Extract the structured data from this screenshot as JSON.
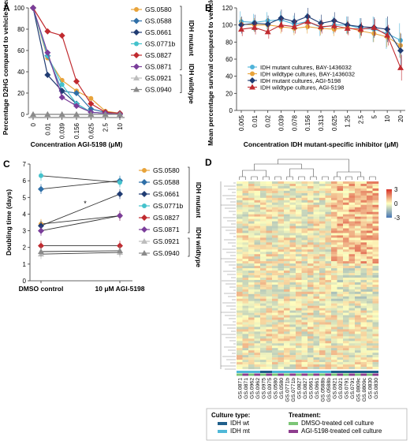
{
  "panels": {
    "a": "A",
    "b": "B",
    "c": "C",
    "d": "D"
  },
  "colors": {
    "GS.0580": "#e8a33a",
    "GS.0588": "#2f6fa8",
    "GS.0661": "#203c73",
    "GS.0771b": "#44c2cc",
    "GS.0827": "#c02a2f",
    "GS.0871": "#7a3d9a",
    "GS.0921": "#bdbdbd",
    "GS.0940": "#8a8a8a"
  },
  "chart_data": [
    {
      "id": "A",
      "type": "line",
      "ylabel": "Percentage D2HG compared to vehicle-treated",
      "xlabel": "Concentration AGI-5198 (μM)",
      "categories": [
        "0",
        "0.01",
        "0.039",
        "0.156",
        "0.625",
        "2.5",
        "10"
      ],
      "ylim": [
        0,
        100
      ],
      "yticks": [
        0,
        20,
        40,
        60,
        80,
        100
      ],
      "groups": [
        {
          "label": "IDH mutant",
          "members": 6
        },
        {
          "label": "IDH wildtype",
          "members": 2
        }
      ],
      "series": [
        {
          "name": "GS.0580",
          "values": [
            100,
            53,
            32,
            22,
            15,
            3,
            1
          ]
        },
        {
          "name": "GS.0588",
          "values": [
            100,
            55,
            22,
            20,
            5,
            2,
            1
          ]
        },
        {
          "name": "GS.0661",
          "values": [
            100,
            37,
            22,
            10,
            2,
            1,
            0
          ]
        },
        {
          "name": "GS.0771b",
          "values": [
            100,
            55,
            28,
            10,
            2,
            1,
            0
          ]
        },
        {
          "name": "GS.0827",
          "values": [
            100,
            78,
            74,
            31,
            10,
            2,
            1
          ]
        },
        {
          "name": "GS.0871",
          "values": [
            100,
            58,
            16,
            8,
            2,
            1,
            0
          ]
        },
        {
          "name": "GS.0921",
          "values": [
            0,
            0,
            0,
            0,
            0,
            0,
            0
          ]
        },
        {
          "name": "GS.0940",
          "values": [
            0,
            0,
            0,
            0,
            0,
            0,
            0
          ]
        }
      ]
    },
    {
      "id": "B",
      "type": "line",
      "ylabel": "Mean percentage survival compared to vehicle-treated",
      "xlabel": "Concentration IDH mutant-specific inhibitor (μM)",
      "categories": [
        "0.005",
        "0.01",
        "0.02",
        "0.039",
        "0.078",
        "0.156",
        "0.313",
        "0.625",
        "1.25",
        "2.5",
        "5",
        "10",
        "20"
      ],
      "ylim": [
        0,
        120
      ],
      "yticks": [
        0,
        20,
        40,
        60,
        80,
        100,
        120
      ],
      "series": [
        {
          "name": "IDH mutant cultures, BAY-1436032",
          "color": "#4fb3d9",
          "marker": "circle",
          "values": [
            104,
            103,
            105,
            106,
            101,
            104,
            97,
            100,
            100,
            96,
            95,
            90,
            82
          ],
          "errors": [
            12,
            10,
            10,
            10,
            10,
            10,
            10,
            10,
            10,
            12,
            15,
            18,
            20
          ]
        },
        {
          "name": "IDH wildtype cultures, BAY-1436032",
          "color": "#e8a33a",
          "marker": "circle",
          "values": [
            101,
            100,
            100,
            98,
            96,
            98,
            96,
            95,
            97,
            93,
            90,
            86,
            76
          ],
          "errors": [
            8,
            8,
            8,
            8,
            8,
            8,
            8,
            8,
            8,
            8,
            10,
            12,
            15
          ]
        },
        {
          "name": "IDH mutant cultures, AGI-5198",
          "color": "#203c73",
          "marker": "diamond",
          "values": [
            100,
            102,
            101,
            108,
            104,
            110,
            102,
            105,
            100,
            98,
            97,
            95,
            70
          ],
          "errors": [
            10,
            10,
            10,
            10,
            10,
            10,
            10,
            10,
            10,
            10,
            12,
            15,
            20
          ]
        },
        {
          "name": "IDH wildtype cultures, AGI-5198",
          "color": "#c02a2f",
          "marker": "triangle",
          "values": [
            95,
            97,
            92,
            100,
            98,
            104,
            98,
            99,
            96,
            95,
            97,
            88,
            50
          ],
          "errors": [
            8,
            8,
            8,
            8,
            8,
            8,
            8,
            8,
            8,
            8,
            10,
            12,
            15
          ]
        }
      ]
    },
    {
      "id": "C",
      "type": "line",
      "ylabel": "Doubling time (days)",
      "categories": [
        "DMSO control",
        "10 μM AGI-5198"
      ],
      "ylim": [
        0,
        7
      ],
      "yticks": [
        0,
        1,
        2,
        3,
        4,
        5,
        6,
        7
      ],
      "annotation": "*",
      "groups": [
        {
          "label": "IDH mutant",
          "members": 6
        },
        {
          "label": "IDH wildtype",
          "members": 2
        }
      ],
      "series": [
        {
          "name": "GS.0580",
          "values": [
            3.4,
            3.9
          ]
        },
        {
          "name": "GS.0588",
          "values": [
            5.5,
            6.0
          ]
        },
        {
          "name": "GS.0661",
          "values": [
            3.3,
            5.2
          ]
        },
        {
          "name": "GS.0771b",
          "values": [
            6.3,
            5.9
          ]
        },
        {
          "name": "GS.0827",
          "values": [
            2.1,
            2.1
          ]
        },
        {
          "name": "GS.0871",
          "values": [
            3.0,
            3.9
          ]
        },
        {
          "name": "GS.0921",
          "values": [
            1.6,
            1.7
          ]
        },
        {
          "name": "GS.0940",
          "values": [
            1.75,
            1.8
          ]
        }
      ]
    },
    {
      "id": "D",
      "type": "heatmap",
      "columns": [
        "GS.0871",
        "GS.0871",
        "GS.0962",
        "GS.0962",
        "GS.0975",
        "GS.0975",
        "GS.0580",
        "GS.0580",
        "GS.0771b",
        "GS.0771b",
        "GS.0827",
        "GS.0827",
        "GS.0661",
        "GS.0661",
        "GS.0588b",
        "GS.0588b",
        "GS.0921",
        "GS.0921",
        "GS.0791",
        "GS.0791",
        "GS.0809c",
        "GS.0809c",
        "GS.0830",
        "GS.0830"
      ],
      "colorbar": {
        "ticks": [
          "3",
          "0",
          "-3"
        ],
        "high": "#d73027",
        "mid": "#ffffbf",
        "low": "#4575b4"
      },
      "legend": {
        "culture_type_title": "Culture type:",
        "culture_types": [
          {
            "label": "IDH wt",
            "color": "#1f5f8b"
          },
          {
            "label": "IDH mt",
            "color": "#4fb8d8"
          }
        ],
        "treatment_title": "Treatment:",
        "treatments": [
          {
            "label": "DMSO-treated cell culture",
            "color": "#7cc576"
          },
          {
            "label": "AGI-5198-treated cell culture",
            "color": "#8e3d8e"
          }
        ]
      }
    }
  ]
}
